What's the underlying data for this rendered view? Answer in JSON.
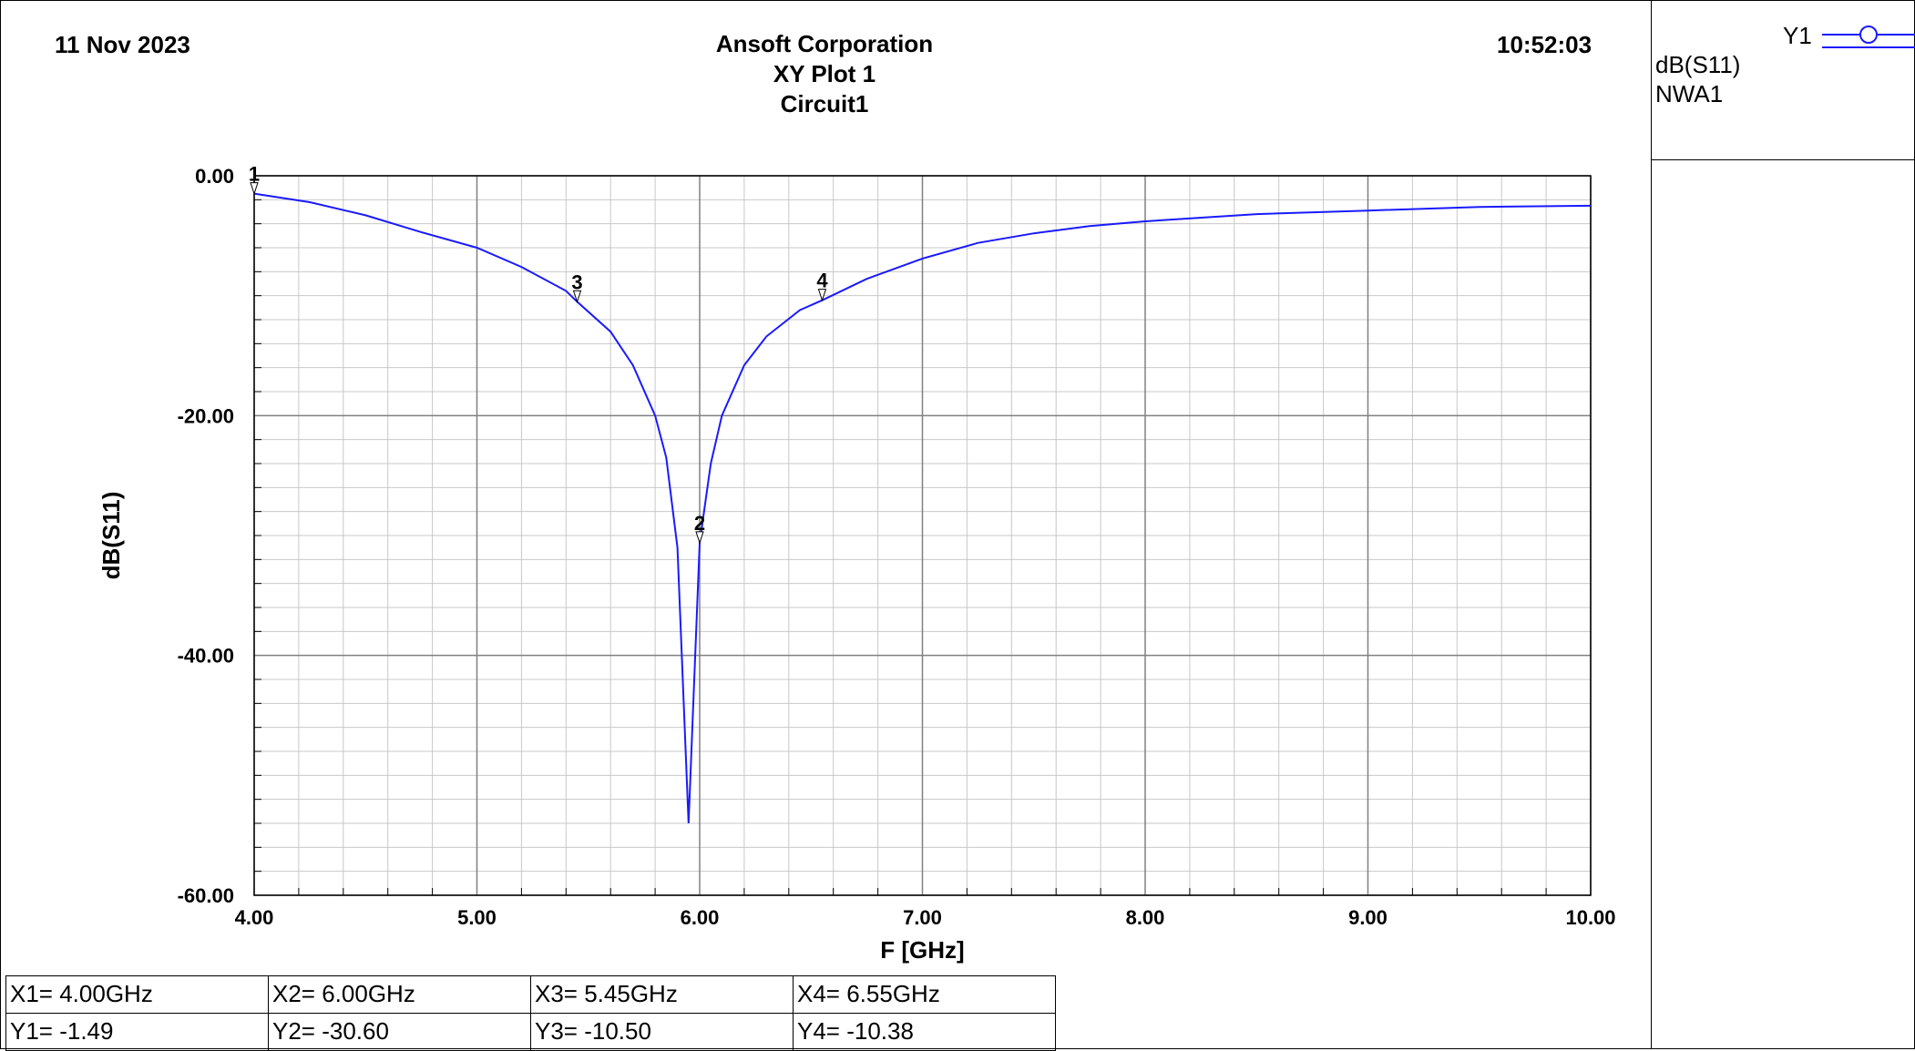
{
  "header": {
    "date": "11 Nov 2023",
    "company": "Ansoft Corporation",
    "plot_title": "XY Plot 1",
    "circuit": "Circuit1",
    "time": "10:52:03"
  },
  "legend": {
    "name": "Y1",
    "expression": "dB(S11)",
    "setup": "NWA1",
    "color": "#1a1aff"
  },
  "chart_data": {
    "type": "line",
    "title": "XY Plot 1",
    "xlabel": "F [GHz]",
    "ylabel": "dB(S11)",
    "xlim": [
      4.0,
      10.0
    ],
    "ylim": [
      -60.0,
      0.0
    ],
    "xticks": [
      4.0,
      5.0,
      6.0,
      7.0,
      8.0,
      9.0,
      10.0
    ],
    "xtick_labels": [
      "4.00",
      "5.00",
      "6.00",
      "7.00",
      "8.00",
      "9.00",
      "10.00"
    ],
    "yticks": [
      0.0,
      -20.0,
      -40.0,
      -60.0
    ],
    "ytick_labels": [
      "0.00",
      "-20.00",
      "-40.00",
      "-60.00"
    ],
    "grid": true,
    "legend_position": "right panel",
    "series": [
      {
        "name": "dB(S11)",
        "color": "#1a1aff",
        "x": [
          4.0,
          4.25,
          4.5,
          4.75,
          5.0,
          5.2,
          5.4,
          5.45,
          5.6,
          5.7,
          5.8,
          5.85,
          5.9,
          5.95,
          6.0,
          6.05,
          6.1,
          6.2,
          6.3,
          6.45,
          6.55,
          6.75,
          7.0,
          7.25,
          7.5,
          7.75,
          8.0,
          8.5,
          9.0,
          9.5,
          10.0
        ],
        "y": [
          -1.49,
          -2.2,
          -3.3,
          -4.7,
          -6.0,
          -7.6,
          -9.6,
          -10.5,
          -13.0,
          -15.8,
          -20.0,
          -23.5,
          -31.0,
          -54.0,
          -30.6,
          -24.0,
          -20.0,
          -15.8,
          -13.4,
          -11.2,
          -10.38,
          -8.6,
          -6.9,
          -5.6,
          -4.8,
          -4.2,
          -3.8,
          -3.2,
          -2.9,
          -2.6,
          -2.5
        ]
      }
    ],
    "markers": [
      {
        "label": "1",
        "x": 4.0,
        "y": -1.49
      },
      {
        "label": "2",
        "x": 6.0,
        "y": -30.6
      },
      {
        "label": "3",
        "x": 5.45,
        "y": -10.5
      },
      {
        "label": "4",
        "x": 6.55,
        "y": -10.38
      }
    ]
  },
  "marker_table": [
    {
      "x_text": "X1= 4.00GHz",
      "y_text": "Y1= -1.49"
    },
    {
      "x_text": "X2= 6.00GHz",
      "y_text": "Y2= -30.60"
    },
    {
      "x_text": "X3= 5.45GHz",
      "y_text": "Y3= -10.50"
    },
    {
      "x_text": "X4= 6.55GHz",
      "y_text": "Y4= -10.38"
    }
  ]
}
